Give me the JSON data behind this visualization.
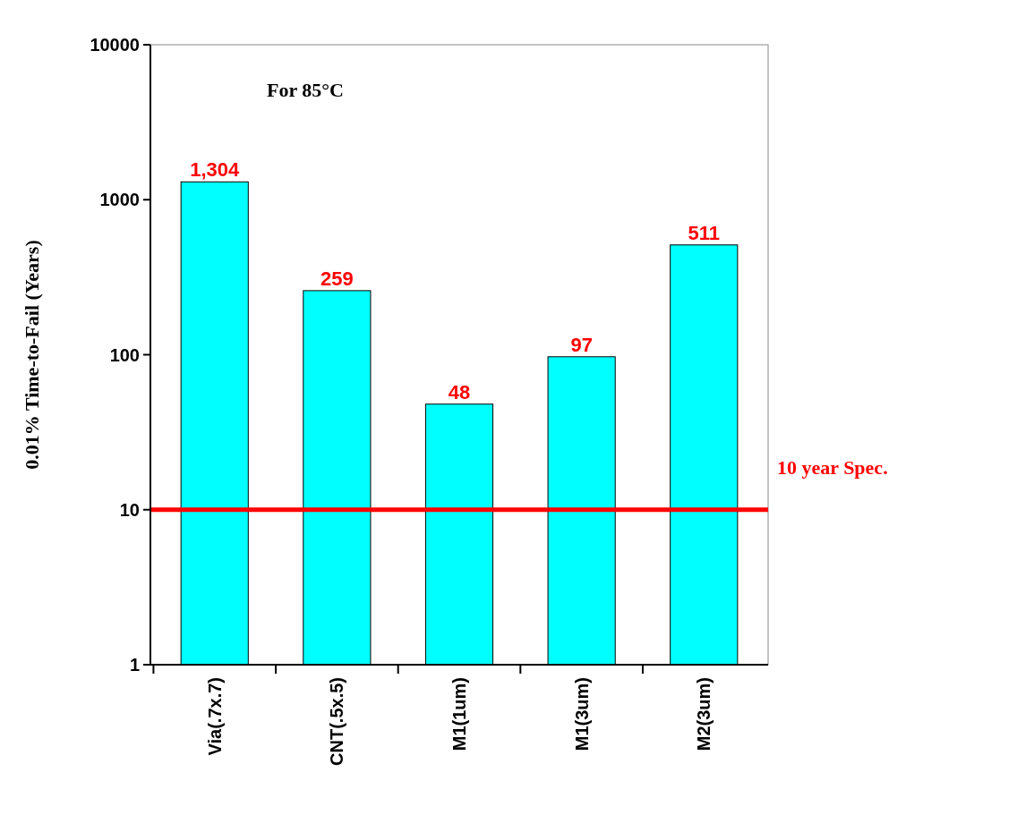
{
  "chart_data": {
    "type": "bar",
    "title": "For 85°C",
    "ylabel": "0.01% Time-to-Fail (Years)",
    "categories": [
      "Via(.7x.7)",
      "CNT(.5x.5)",
      "M1(1um)",
      "M1(3um)",
      "M2(3um)"
    ],
    "values": [
      1304,
      259,
      48,
      97,
      511
    ],
    "value_labels": [
      "1,304",
      "259",
      "48",
      "97",
      "511"
    ],
    "color": "#00ffff",
    "log": true,
    "ylim": [
      1,
      10000
    ],
    "yticks": [
      1,
      10,
      100,
      1000,
      10000
    ],
    "grid": false,
    "ref_lines": [
      {
        "axis": "y",
        "value": 10,
        "label": "10 year Spec.",
        "color": "#ff0000"
      }
    ]
  }
}
